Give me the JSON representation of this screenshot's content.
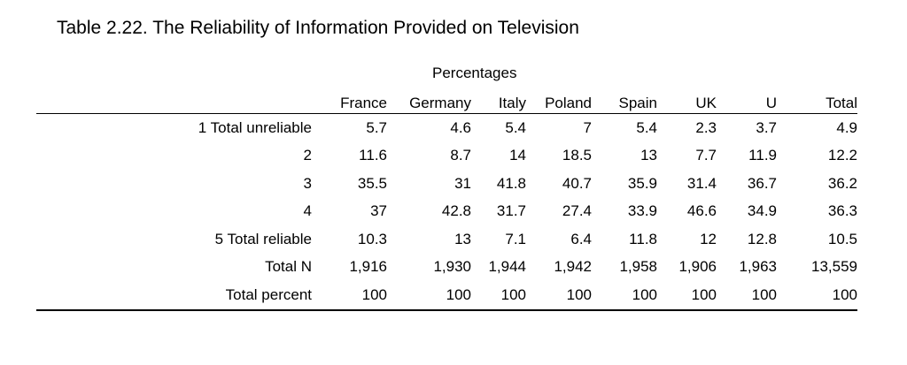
{
  "title": "Table 2.22. The Reliability of Information Provided on Television",
  "subtitle": "Percentages",
  "columns": [
    "France",
    "Germany",
    "Italy",
    "Poland",
    "Spain",
    "UK",
    "U",
    "Total"
  ],
  "rows": [
    {
      "label": "1 Total unreliable",
      "values": [
        "5.7",
        "4.6",
        "5.4",
        "7",
        "5.4",
        "2.3",
        "3.7",
        "4.9"
      ]
    },
    {
      "label": "2",
      "values": [
        "11.6",
        "8.7",
        "14",
        "18.5",
        "13",
        "7.7",
        "11.9",
        "12.2"
      ]
    },
    {
      "label": "3",
      "values": [
        "35.5",
        "31",
        "41.8",
        "40.7",
        "35.9",
        "31.4",
        "36.7",
        "36.2"
      ]
    },
    {
      "label": "4",
      "values": [
        "37",
        "42.8",
        "31.7",
        "27.4",
        "33.9",
        "46.6",
        "34.9",
        "36.3"
      ]
    },
    {
      "label": "5 Total reliable",
      "values": [
        "10.3",
        "13",
        "7.1",
        "6.4",
        "11.8",
        "12",
        "12.8",
        "10.5"
      ]
    },
    {
      "label": "Total N",
      "values": [
        "1,916",
        "1,930",
        "1,944",
        "1,942",
        "1,958",
        "1,906",
        "1,963",
        "13,559"
      ]
    },
    {
      "label": "Total percent",
      "values": [
        "100",
        "100",
        "100",
        "100",
        "100",
        "100",
        "100",
        "100"
      ]
    }
  ]
}
